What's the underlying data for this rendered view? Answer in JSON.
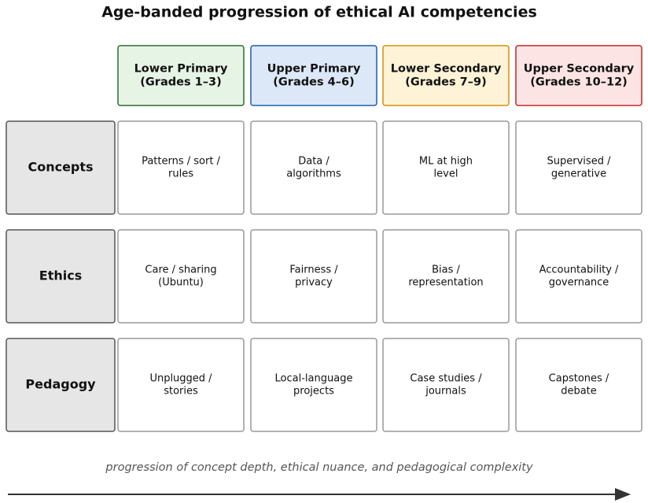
{
  "title": "Age-banded progression of ethical AI competencies",
  "columns": [
    {
      "lines": [
        "Lower Primary",
        "(Grades 1–3)"
      ]
    },
    {
      "lines": [
        "Upper Primary",
        "(Grades 4–6)"
      ]
    },
    {
      "lines": [
        "Lower Secondary",
        "(Grades 7–9)"
      ]
    },
    {
      "lines": [
        "Upper Secondary",
        "(Grades 10–12)"
      ]
    }
  ],
  "rows": [
    {
      "label": "Concepts",
      "cells": [
        [
          "Patterns / sort /",
          "rules"
        ],
        [
          "Data /",
          "algorithms"
        ],
        [
          "ML at high",
          "level"
        ],
        [
          "Supervised /",
          "generative"
        ]
      ]
    },
    {
      "label": "Ethics",
      "cells": [
        [
          "Care / sharing",
          "(Ubuntu)"
        ],
        [
          "Fairness /",
          "privacy"
        ],
        [
          "Bias /",
          "representation"
        ],
        [
          "Accountability /",
          "governance"
        ]
      ]
    },
    {
      "label": "Pedagogy",
      "cells": [
        [
          "Unplugged /",
          "stories"
        ],
        [
          "Local-language",
          "projects"
        ],
        [
          "Case studies /",
          "journals"
        ],
        [
          "Capstones /",
          "debate"
        ]
      ]
    }
  ],
  "caption": "progression of concept depth, ethical nuance, and pedagogical complexity"
}
